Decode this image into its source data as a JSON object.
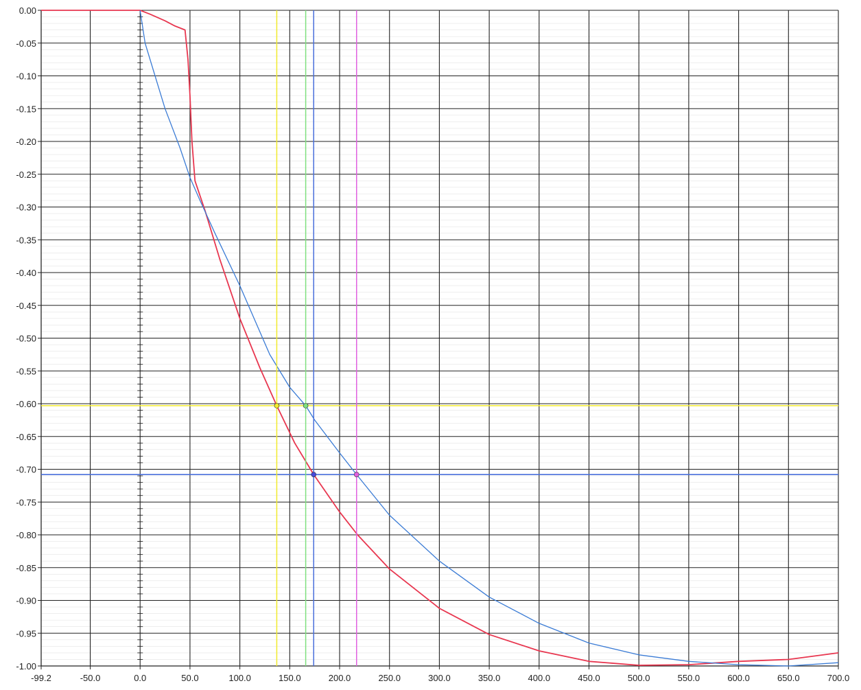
{
  "chart_data": {
    "type": "line",
    "title": "",
    "xlabel": "",
    "ylabel": "",
    "xlim": [
      -99.2,
      700.0
    ],
    "ylim": [
      -1.0,
      0.0
    ],
    "grid": true,
    "x_ticks": [
      "-99.2",
      "-50.0",
      "0.0",
      "50.0",
      "100.0",
      "150.0",
      "200.0",
      "250.0",
      "300.0",
      "350.0",
      "400.0",
      "450.0",
      "500.0",
      "550.0",
      "600.0",
      "650.0",
      "700.0"
    ],
    "y_ticks": [
      "0.00",
      "-0.05",
      "-0.10",
      "-0.15",
      "-0.20",
      "-0.25",
      "-0.30",
      "-0.35",
      "-0.40",
      "-0.45",
      "-0.50",
      "-0.55",
      "-0.60",
      "-0.65",
      "-0.70",
      "-0.75",
      "-0.80",
      "-0.85",
      "-0.90",
      "-0.95",
      "-1.00"
    ],
    "series": [
      {
        "color": "#e8364f",
        "points": [
          [
            -99.2,
            0.0
          ],
          [
            0.0,
            0.0
          ],
          [
            10,
            -0.006
          ],
          [
            25,
            -0.016
          ],
          [
            35,
            -0.024
          ],
          [
            45,
            -0.03
          ],
          [
            48,
            -0.075
          ],
          [
            50,
            -0.13
          ],
          [
            52,
            -0.2
          ],
          [
            55,
            -0.26
          ],
          [
            65,
            -0.305
          ],
          [
            80,
            -0.38
          ],
          [
            100,
            -0.47
          ],
          [
            120,
            -0.545
          ],
          [
            137,
            -0.603
          ],
          [
            155,
            -0.66
          ],
          [
            174,
            -0.708
          ],
          [
            200,
            -0.765
          ],
          [
            218,
            -0.8
          ],
          [
            250,
            -0.852
          ],
          [
            300,
            -0.912
          ],
          [
            350,
            -0.952
          ],
          [
            400,
            -0.977
          ],
          [
            450,
            -0.993
          ],
          [
            500,
            -0.999
          ],
          [
            550,
            -0.998
          ],
          [
            600,
            -0.993
          ],
          [
            650,
            -0.99
          ],
          [
            700,
            -0.98
          ]
        ]
      },
      {
        "color": "#3a7bd5",
        "points": [
          [
            0.0,
            0.0
          ],
          [
            5,
            -0.05
          ],
          [
            15,
            -0.1
          ],
          [
            25,
            -0.15
          ],
          [
            40,
            -0.21
          ],
          [
            50,
            -0.255
          ],
          [
            60,
            -0.29
          ],
          [
            75,
            -0.34
          ],
          [
            100,
            -0.42
          ],
          [
            130,
            -0.525
          ],
          [
            150,
            -0.575
          ],
          [
            166,
            -0.603
          ],
          [
            175,
            -0.625
          ],
          [
            200,
            -0.675
          ],
          [
            217,
            -0.708
          ],
          [
            250,
            -0.77
          ],
          [
            300,
            -0.84
          ],
          [
            350,
            -0.895
          ],
          [
            400,
            -0.935
          ],
          [
            450,
            -0.965
          ],
          [
            500,
            -0.983
          ],
          [
            550,
            -0.993
          ],
          [
            600,
            -0.998
          ],
          [
            650,
            -1.0
          ],
          [
            700,
            -0.995
          ]
        ]
      }
    ],
    "cursors": {
      "horizontal": [
        {
          "y": -0.603,
          "color": "#f2ea2c"
        },
        {
          "y": -0.708,
          "color": "#4a6fdc"
        }
      ],
      "vertical": [
        {
          "x": 137,
          "color": "#f2ea2c"
        },
        {
          "x": 166,
          "color": "#7ee07e"
        },
        {
          "x": 174,
          "color": "#4a6fdc"
        },
        {
          "x": 217,
          "color": "#e060e0"
        }
      ],
      "markers": [
        {
          "x": 137,
          "y": -0.603,
          "color": "#f2ea2c"
        },
        {
          "x": 166,
          "y": -0.603,
          "color": "#7ee07e"
        },
        {
          "x": 174,
          "y": -0.708,
          "color": "#4a4adc"
        },
        {
          "x": 217,
          "y": -0.708,
          "color": "#e060e0"
        }
      ]
    }
  }
}
